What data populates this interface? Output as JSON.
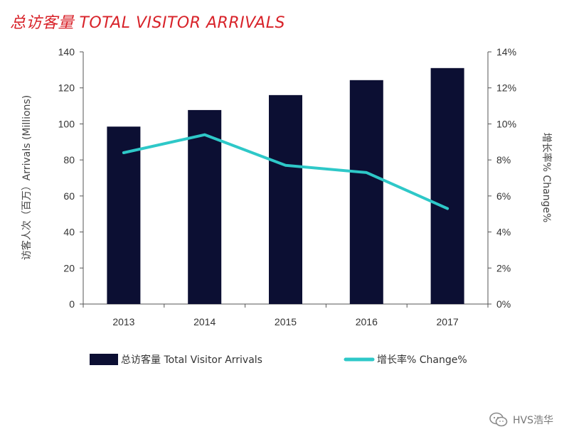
{
  "chart_data": {
    "type": "bar",
    "title": "总访客量 TOTAL VISITOR ARRIVALS",
    "categories": [
      "2013",
      "2014",
      "2015",
      "2016",
      "2017"
    ],
    "series": [
      {
        "name": "总访客量 Total Visitor Arrivals",
        "type": "bar",
        "axis": "left",
        "color": "#0c0f33",
        "values": [
          98.5,
          107.7,
          116.0,
          124.3,
          131.0
        ]
      },
      {
        "name": "增长率% Change%",
        "type": "line",
        "axis": "right",
        "color": "#2ec8c8",
        "values": [
          8.4,
          9.4,
          7.7,
          7.3,
          5.3
        ]
      }
    ],
    "ylabel": "访客人次（百万）Arrivals (Millions)",
    "ylabel_right": "增长率% Change%",
    "ylim": [
      0,
      140
    ],
    "yticks": [
      "0",
      "20",
      "40",
      "60",
      "80",
      "100",
      "120",
      "140"
    ],
    "ylim_right": [
      0,
      14
    ],
    "yticks_right": [
      "0%",
      "2%",
      "4%",
      "6%",
      "8%",
      "10%",
      "12%",
      "14%"
    ],
    "legend_position": "bottom",
    "grid": false
  },
  "watermark": {
    "text": "HVS浩华",
    "icon": "wechat-icon"
  }
}
